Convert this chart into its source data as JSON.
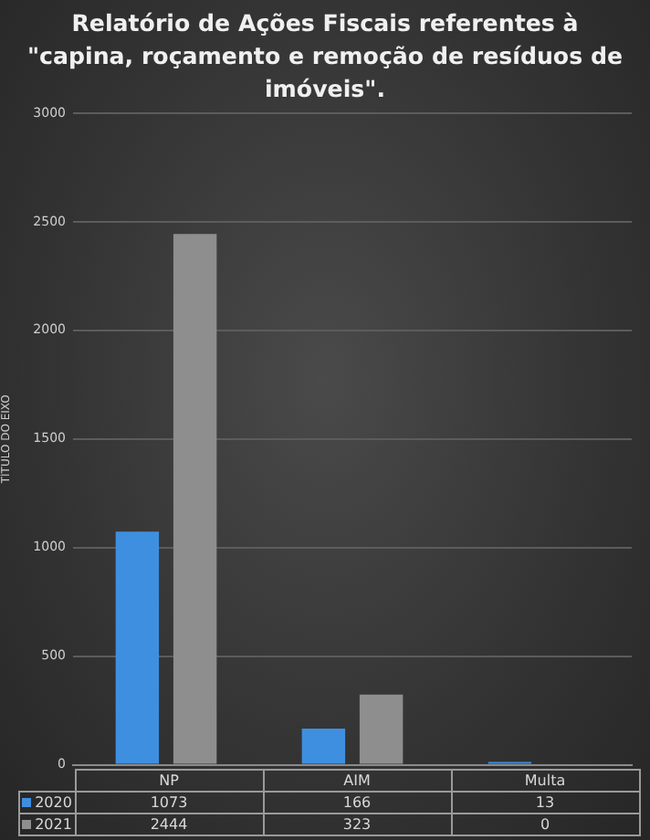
{
  "chart_data": {
    "type": "bar",
    "title": "Relatório de Ações Fiscais referentes à \"capina, roçamento e remoção de resíduos de imóveis\".",
    "ylabel": "TÍTULO DO EIXO",
    "categories": [
      "NP",
      "AIM",
      "Multa"
    ],
    "series": [
      {
        "name": "2020",
        "color": "#3f8fe0",
        "values": [
          1073,
          166,
          13
        ]
      },
      {
        "name": "2021",
        "color": "#8e8e8e",
        "values": [
          2444,
          323,
          0
        ]
      }
    ],
    "ylim": [
      0,
      3000
    ],
    "yticks": [
      0,
      500,
      1000,
      1500,
      2000,
      2500,
      3000
    ],
    "grid": "y",
    "legend": "bottom",
    "data_labels": true
  }
}
